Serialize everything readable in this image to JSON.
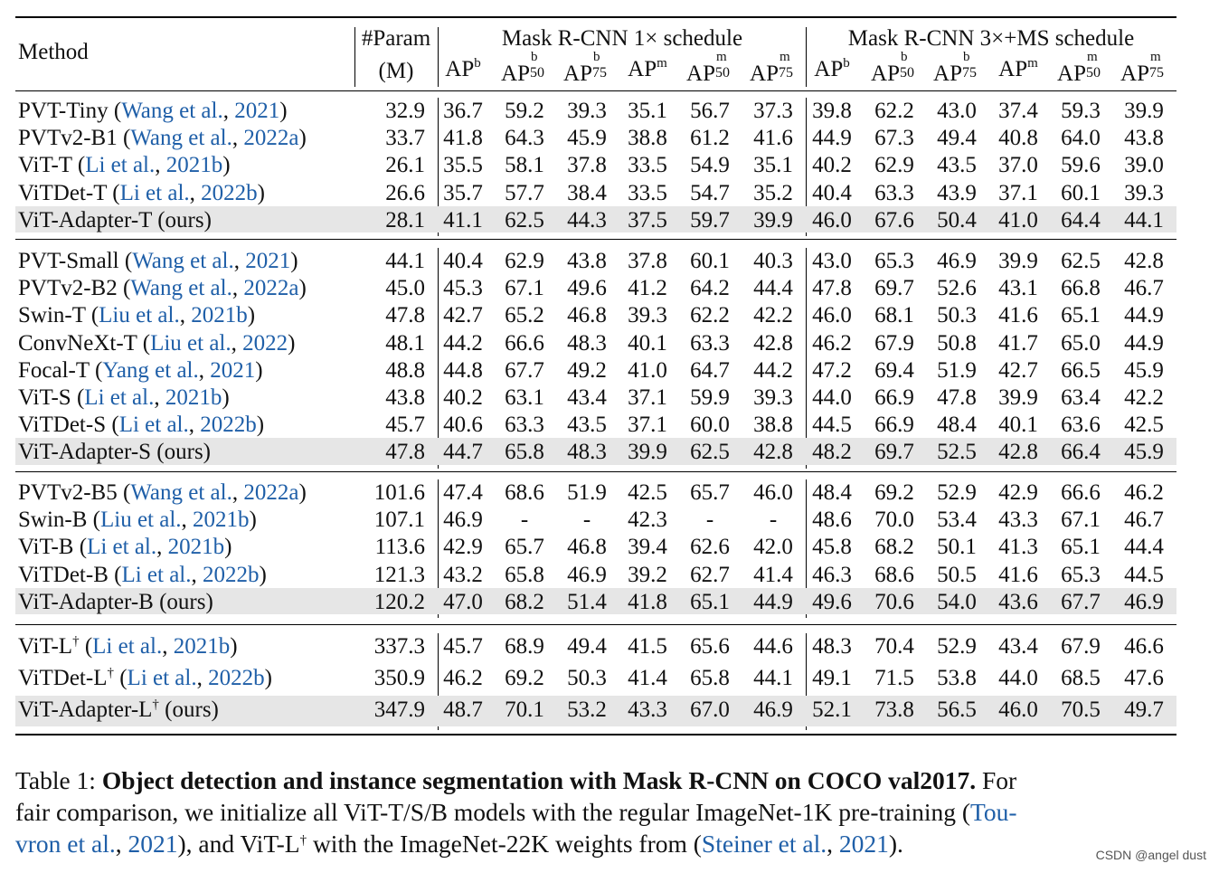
{
  "header": {
    "method": "Method",
    "param_top": "#Param",
    "param_bottom": "(M)",
    "group1": "Mask R-CNN 1× schedule",
    "group2": "Mask R-CNN 3×+MS schedule",
    "metrics": [
      {
        "base": "AP",
        "sup": "b",
        "sub": ""
      },
      {
        "base": "AP",
        "sup": "b",
        "sub": "50"
      },
      {
        "base": "AP",
        "sup": "b",
        "sub": "75"
      },
      {
        "base": "AP",
        "sup": "m",
        "sub": ""
      },
      {
        "base": "AP",
        "sup": "m",
        "sub": "50"
      },
      {
        "base": "AP",
        "sup": "m",
        "sub": "75"
      }
    ]
  },
  "groups": [
    {
      "rows": [
        {
          "name": "PVT-Tiny",
          "cite": "Wang et al., 2021",
          "dagger": false,
          "param": "32.9",
          "v": [
            "36.7",
            "59.2",
            "39.3",
            "35.1",
            "56.7",
            "37.3",
            "39.8",
            "62.2",
            "43.0",
            "37.4",
            "59.3",
            "39.9"
          ],
          "highlight": false
        },
        {
          "name": "PVTv2-B1",
          "cite": "Wang et al., 2022a",
          "dagger": false,
          "param": "33.7",
          "v": [
            "41.8",
            "64.3",
            "45.9",
            "38.8",
            "61.2",
            "41.6",
            "44.9",
            "67.3",
            "49.4",
            "40.8",
            "64.0",
            "43.8"
          ],
          "highlight": false
        },
        {
          "name": "ViT-T",
          "cite": "Li et al., 2021b",
          "dagger": false,
          "param": "26.1",
          "v": [
            "35.5",
            "58.1",
            "37.8",
            "33.5",
            "54.9",
            "35.1",
            "40.2",
            "62.9",
            "43.5",
            "37.0",
            "59.6",
            "39.0"
          ],
          "highlight": false
        },
        {
          "name": "ViTDet-T",
          "cite": "Li et al., 2022b",
          "dagger": false,
          "param": "26.6",
          "v": [
            "35.7",
            "57.7",
            "38.4",
            "33.5",
            "54.7",
            "35.2",
            "40.4",
            "63.3",
            "43.9",
            "37.1",
            "60.1",
            "39.3"
          ],
          "highlight": false
        },
        {
          "name": "ViT-Adapter-T (ours)",
          "cite": "",
          "dagger": false,
          "param": "28.1",
          "v": [
            "41.1",
            "62.5",
            "44.3",
            "37.5",
            "59.7",
            "39.9",
            "46.0",
            "67.6",
            "50.4",
            "41.0",
            "64.4",
            "44.1"
          ],
          "highlight": true
        }
      ]
    },
    {
      "rows": [
        {
          "name": "PVT-Small",
          "cite": "Wang et al., 2021",
          "dagger": false,
          "param": "44.1",
          "v": [
            "40.4",
            "62.9",
            "43.8",
            "37.8",
            "60.1",
            "40.3",
            "43.0",
            "65.3",
            "46.9",
            "39.9",
            "62.5",
            "42.8"
          ],
          "highlight": false
        },
        {
          "name": "PVTv2-B2",
          "cite": "Wang et al., 2022a",
          "dagger": false,
          "param": "45.0",
          "v": [
            "45.3",
            "67.1",
            "49.6",
            "41.2",
            "64.2",
            "44.4",
            "47.8",
            "69.7",
            "52.6",
            "43.1",
            "66.8",
            "46.7"
          ],
          "highlight": false
        },
        {
          "name": "Swin-T",
          "cite": "Liu et al., 2021b",
          "dagger": false,
          "param": "47.8",
          "v": [
            "42.7",
            "65.2",
            "46.8",
            "39.3",
            "62.2",
            "42.2",
            "46.0",
            "68.1",
            "50.3",
            "41.6",
            "65.1",
            "44.9"
          ],
          "highlight": false
        },
        {
          "name": "ConvNeXt-T",
          "cite": "Liu et al., 2022",
          "dagger": false,
          "param": "48.1",
          "v": [
            "44.2",
            "66.6",
            "48.3",
            "40.1",
            "63.3",
            "42.8",
            "46.2",
            "67.9",
            "50.8",
            "41.7",
            "65.0",
            "44.9"
          ],
          "highlight": false
        },
        {
          "name": "Focal-T",
          "cite": "Yang et al., 2021",
          "dagger": false,
          "param": "48.8",
          "v": [
            "44.8",
            "67.7",
            "49.2",
            "41.0",
            "64.7",
            "44.2",
            "47.2",
            "69.4",
            "51.9",
            "42.7",
            "66.5",
            "45.9"
          ],
          "highlight": false
        },
        {
          "name": "ViT-S",
          "cite": "Li et al., 2021b",
          "dagger": false,
          "param": "43.8",
          "v": [
            "40.2",
            "63.1",
            "43.4",
            "37.1",
            "59.9",
            "39.3",
            "44.0",
            "66.9",
            "47.8",
            "39.9",
            "63.4",
            "42.2"
          ],
          "highlight": false
        },
        {
          "name": "ViTDet-S",
          "cite": "Li et al., 2022b",
          "dagger": false,
          "param": "45.7",
          "v": [
            "40.6",
            "63.3",
            "43.5",
            "37.1",
            "60.0",
            "38.8",
            "44.5",
            "66.9",
            "48.4",
            "40.1",
            "63.6",
            "42.5"
          ],
          "highlight": false
        },
        {
          "name": "ViT-Adapter-S (ours)",
          "cite": "",
          "dagger": false,
          "param": "47.8",
          "v": [
            "44.7",
            "65.8",
            "48.3",
            "39.9",
            "62.5",
            "42.8",
            "48.2",
            "69.7",
            "52.5",
            "42.8",
            "66.4",
            "45.9"
          ],
          "highlight": true
        }
      ]
    },
    {
      "rows": [
        {
          "name": "PVTv2-B5",
          "cite": "Wang et al., 2022a",
          "dagger": false,
          "param": "101.6",
          "v": [
            "47.4",
            "68.6",
            "51.9",
            "42.5",
            "65.7",
            "46.0",
            "48.4",
            "69.2",
            "52.9",
            "42.9",
            "66.6",
            "46.2"
          ],
          "highlight": false
        },
        {
          "name": "Swin-B",
          "cite": "Liu et al., 2021b",
          "dagger": false,
          "param": "107.1",
          "v": [
            "46.9",
            "-",
            "-",
            "42.3",
            "-",
            "-",
            "48.6",
            "70.0",
            "53.4",
            "43.3",
            "67.1",
            "46.7"
          ],
          "highlight": false
        },
        {
          "name": "ViT-B",
          "cite": "Li et al., 2021b",
          "dagger": false,
          "param": "113.6",
          "v": [
            "42.9",
            "65.7",
            "46.8",
            "39.4",
            "62.6",
            "42.0",
            "45.8",
            "68.2",
            "50.1",
            "41.3",
            "65.1",
            "44.4"
          ],
          "highlight": false
        },
        {
          "name": "ViTDet-B",
          "cite": "Li et al., 2022b",
          "dagger": false,
          "param": "121.3",
          "v": [
            "43.2",
            "65.8",
            "46.9",
            "39.2",
            "62.7",
            "41.4",
            "46.3",
            "68.6",
            "50.5",
            "41.6",
            "65.3",
            "44.5"
          ],
          "highlight": false
        },
        {
          "name": "ViT-Adapter-B (ours)",
          "cite": "",
          "dagger": false,
          "param": "120.2",
          "v": [
            "47.0",
            "68.2",
            "51.4",
            "41.8",
            "65.1",
            "44.9",
            "49.6",
            "70.6",
            "54.0",
            "43.6",
            "67.7",
            "46.9"
          ],
          "highlight": true
        }
      ]
    },
    {
      "rows": [
        {
          "name": "ViT-L",
          "cite": "Li et al., 2021b",
          "dagger": true,
          "param": "337.3",
          "v": [
            "45.7",
            "68.9",
            "49.4",
            "41.5",
            "65.6",
            "44.6",
            "48.3",
            "70.4",
            "52.9",
            "43.4",
            "67.9",
            "46.6"
          ],
          "highlight": false
        },
        {
          "name": "ViTDet-L",
          "cite": "Li et al., 2022b",
          "dagger": true,
          "param": "350.9",
          "v": [
            "46.2",
            "69.2",
            "50.3",
            "41.4",
            "65.8",
            "44.1",
            "49.1",
            "71.5",
            "53.8",
            "44.0",
            "68.5",
            "47.6"
          ],
          "highlight": false
        },
        {
          "name": "ViT-Adapter-L",
          "suffix": "(ours)",
          "cite": "",
          "dagger": true,
          "param": "347.9",
          "v": [
            "48.7",
            "70.1",
            "53.2",
            "43.3",
            "67.0",
            "46.9",
            "52.1",
            "73.8",
            "56.5",
            "46.0",
            "70.5",
            "49.7"
          ],
          "highlight": true
        }
      ]
    }
  ],
  "caption": {
    "label": "Table 1: ",
    "bold": "Object detection and instance segmentation with Mask R-CNN on COCO val2017.",
    "line1_tail": " For",
    "line2": "fair comparison, we initialize all ViT-T/S/B models with the regular ImageNet-1K pre-training (",
    "cite1a": "Tou-",
    "cite1b": "vron et al.",
    "sep1": ", ",
    "cite1c": "2021",
    "line3a": "), and ViT-L",
    "dagger": "†",
    "line3b": " with the ImageNet-22K weights from (",
    "cite2a": "Steiner et al.",
    "sep2": ", ",
    "cite2b": "2021",
    "line3c": ")."
  },
  "watermark": "CSDN @angel dust"
}
